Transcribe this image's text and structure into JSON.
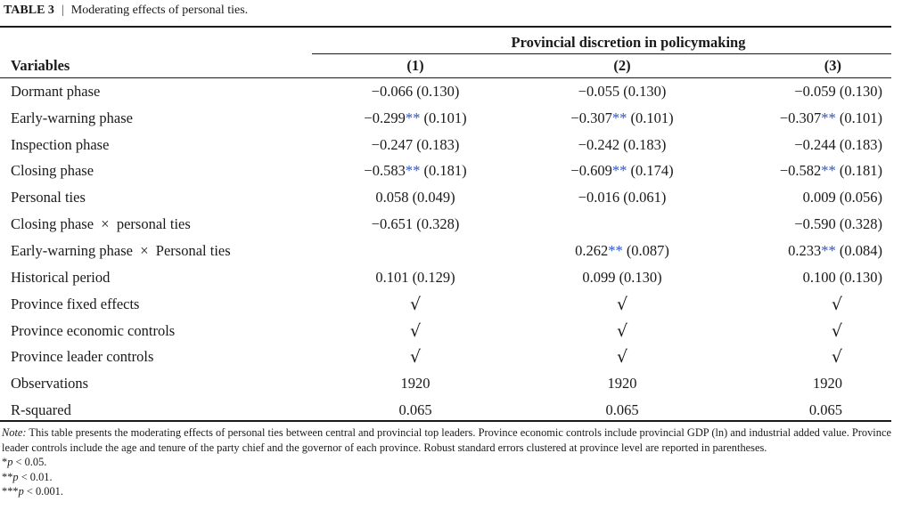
{
  "caption": {
    "label": "TABLE 3",
    "separator": "|",
    "title": "Moderating effects of personal ties."
  },
  "table": {
    "group_header": "Provincial discretion in policymaking",
    "variables_header": "Variables",
    "columns": [
      "(1)",
      "(2)",
      "(3)"
    ],
    "rows": [
      {
        "variable": "Dormant phase",
        "cells": [
          {
            "pre": "−0.066",
            "stars": "",
            "post": " (0.130)"
          },
          {
            "pre": "−0.055",
            "stars": "",
            "post": " (0.130)"
          },
          {
            "pre": "−0.059",
            "stars": "",
            "post": " (0.130)"
          }
        ]
      },
      {
        "variable": "Early-warning phase",
        "cells": [
          {
            "pre": "−0.299",
            "stars": "**",
            "post": " (0.101)"
          },
          {
            "pre": "−0.307",
            "stars": "**",
            "post": " (0.101)"
          },
          {
            "pre": "−0.307",
            "stars": "**",
            "post": " (0.101)"
          }
        ]
      },
      {
        "variable": "Inspection phase",
        "cells": [
          {
            "pre": "−0.247",
            "stars": "",
            "post": " (0.183)"
          },
          {
            "pre": "−0.242",
            "stars": "",
            "post": " (0.183)"
          },
          {
            "pre": "−0.244",
            "stars": "",
            "post": " (0.183)"
          }
        ]
      },
      {
        "variable": "Closing phase",
        "cells": [
          {
            "pre": "−0.583",
            "stars": "**",
            "post": " (0.181)"
          },
          {
            "pre": "−0.609",
            "stars": "**",
            "post": " (0.174)"
          },
          {
            "pre": "−0.582",
            "stars": "**",
            "post": " (0.181)"
          }
        ]
      },
      {
        "variable": "Personal ties",
        "cells": [
          {
            "pre": "0.058",
            "stars": "",
            "post": " (0.049)"
          },
          {
            "pre": "−0.016",
            "stars": "",
            "post": " (0.061)"
          },
          {
            "pre": "0.009",
            "stars": "",
            "post": " (0.056)"
          }
        ]
      },
      {
        "variable": "Closing phase  ×  personal ties",
        "cells": [
          {
            "pre": "−0.651",
            "stars": "",
            "post": " (0.328)"
          },
          {
            "pre": "",
            "stars": "",
            "post": ""
          },
          {
            "pre": "−0.590",
            "stars": "",
            "post": " (0.328)"
          }
        ]
      },
      {
        "variable": "Early-warning phase  ×  Personal ties",
        "cells": [
          {
            "pre": "",
            "stars": "",
            "post": ""
          },
          {
            "pre": "0.262",
            "stars": "**",
            "post": " (0.087)"
          },
          {
            "pre": "0.233",
            "stars": "**",
            "post": " (0.084)"
          }
        ]
      },
      {
        "variable": "Historical period",
        "cells": [
          {
            "pre": "0.101",
            "stars": "",
            "post": " (0.129)"
          },
          {
            "pre": "0.099",
            "stars": "",
            "post": " (0.130)"
          },
          {
            "pre": "0.100",
            "stars": "",
            "post": " (0.130)"
          }
        ]
      },
      {
        "variable": "Province fixed effects",
        "cells": [
          {
            "pre": "√",
            "stars": "",
            "post": "",
            "check": true
          },
          {
            "pre": "√",
            "stars": "",
            "post": "",
            "check": true
          },
          {
            "pre": "√",
            "stars": "",
            "post": "",
            "check": true
          }
        ]
      },
      {
        "variable": "Province economic controls",
        "cells": [
          {
            "pre": "√",
            "stars": "",
            "post": "",
            "check": true
          },
          {
            "pre": "√",
            "stars": "",
            "post": "",
            "check": true
          },
          {
            "pre": "√",
            "stars": "",
            "post": "",
            "check": true
          }
        ]
      },
      {
        "variable": "Province leader controls",
        "cells": [
          {
            "pre": "√",
            "stars": "",
            "post": "",
            "check": true
          },
          {
            "pre": "√",
            "stars": "",
            "post": "",
            "check": true
          },
          {
            "pre": "√",
            "stars": "",
            "post": "",
            "check": true
          }
        ]
      },
      {
        "variable": "Observations",
        "cells": [
          {
            "pre": "1920",
            "stars": "",
            "post": ""
          },
          {
            "pre": "1920",
            "stars": "",
            "post": ""
          },
          {
            "pre": "1920",
            "stars": "",
            "post": ""
          }
        ]
      },
      {
        "variable": "R-squared",
        "cells": [
          {
            "pre": "0.065",
            "stars": "",
            "post": ""
          },
          {
            "pre": "0.065",
            "stars": "",
            "post": ""
          },
          {
            "pre": "0.065",
            "stars": "",
            "post": ""
          }
        ]
      }
    ]
  },
  "note": {
    "label": "Note:",
    "text": " This table presents the moderating effects of personal ties between central and provincial top leaders. Province economic controls include provincial GDP (ln) and industrial added value. Province leader controls include the age and tenure of the party chief and the governor of each province. Robust standard errors clustered at province level are reported in parentheses.",
    "pvalues": [
      {
        "stars": "*",
        "p": "p",
        "rest": " < 0.05."
      },
      {
        "stars": "**",
        "p": "p",
        "rest": " < 0.01."
      },
      {
        "stars": "***",
        "p": "p",
        "rest": " < 0.001."
      }
    ]
  },
  "colors": {
    "text": "#1a1a1a",
    "significance_stars": "#2a52c9"
  }
}
